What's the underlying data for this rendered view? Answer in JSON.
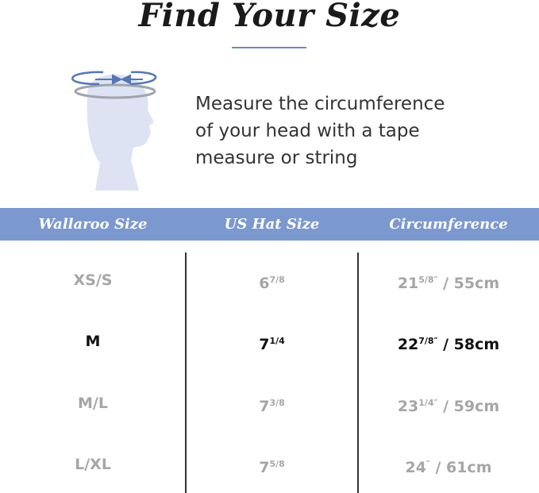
{
  "title": "Find Your Size",
  "instruction": [
    "Measure the circumference",
    "of your head with a tape",
    "measure or string"
  ],
  "colors": {
    "accent": "#7b98cf",
    "arrow": "#5577b5",
    "head": "#dde3f3",
    "highlight": "#111111",
    "muted": "#a6a6a6"
  },
  "table": {
    "headers": [
      "Wallaroo Size",
      "US Hat Size",
      "Circumference"
    ],
    "rows": [
      {
        "size": "XS/S",
        "hat_whole": "6",
        "hat_frac": "7/8",
        "circ_whole": "21",
        "circ_frac": "5/8″",
        "circ_rest": " / 55cm",
        "highlighted": false
      },
      {
        "size": "M",
        "hat_whole": "7",
        "hat_frac": "1/4",
        "circ_whole": "22",
        "circ_frac": "7/8″",
        "circ_rest": " / 58cm",
        "highlighted": true
      },
      {
        "size": "M/L",
        "hat_whole": "7",
        "hat_frac": "3/8",
        "circ_whole": "23",
        "circ_frac": "1/4″",
        "circ_rest": " / 59cm",
        "highlighted": false
      },
      {
        "size": "L/XL",
        "hat_whole": "7",
        "hat_frac": "5/8",
        "circ_whole": "24",
        "circ_frac": "″",
        "circ_rest": " / 61cm",
        "highlighted": false
      }
    ]
  }
}
